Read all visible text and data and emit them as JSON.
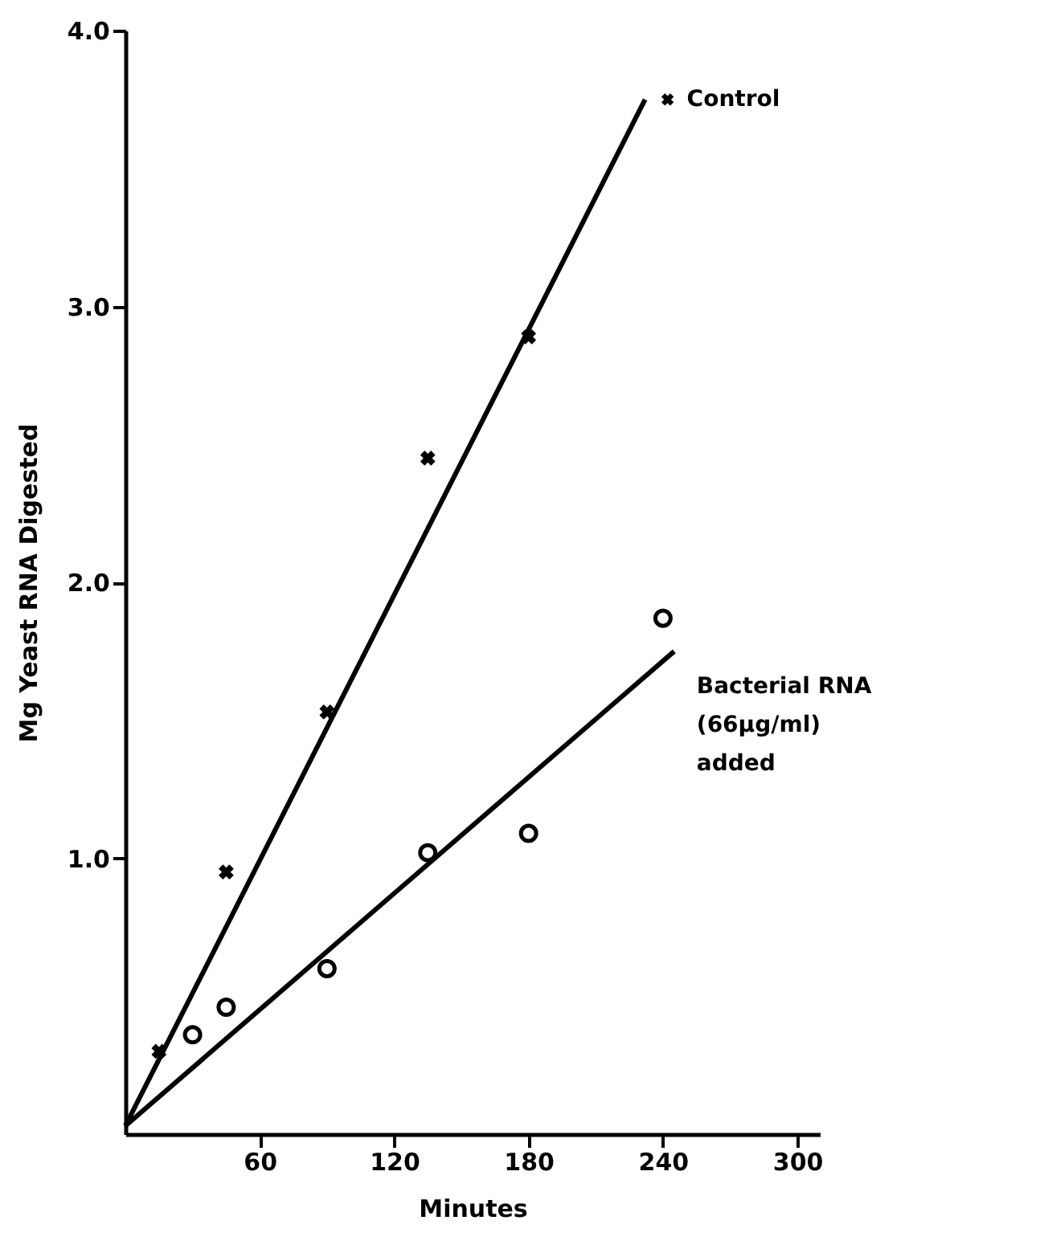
{
  "chart_data": {
    "type": "scatter",
    "xlabel": "Minutes",
    "ylabel": "Mg Yeast RNA Digested",
    "xlim": [
      0,
      310
    ],
    "ylim": [
      0,
      4.0
    ],
    "xticks": [
      60,
      120,
      180,
      240,
      300
    ],
    "yticks": [
      {
        "value": 1,
        "label": "1.0"
      },
      {
        "value": 2,
        "label": "2.0"
      },
      {
        "value": 3,
        "label": "3.0"
      },
      {
        "value": 4,
        "label": "4.0"
      }
    ],
    "grid": false,
    "legend": "top right",
    "series": [
      {
        "name": "Control",
        "marker": "cross",
        "color": "#000000",
        "x": [
          15,
          45,
          90,
          135,
          180
        ],
        "values": [
          0.3,
          0.95,
          1.53,
          2.45,
          2.89
        ]
      },
      {
        "type": "line",
        "marker": "none",
        "line_style": "solid",
        "color": "#000000",
        "x": [
          0,
          232
        ],
        "values": [
          0.03,
          3.75
        ]
      },
      {
        "name": "Bacterial RNA (66µg/ml) added",
        "marker": "circle",
        "color": "#000000",
        "x": [
          30,
          45,
          90,
          135,
          180,
          240
        ],
        "values": [
          0.36,
          0.46,
          0.6,
          1.02,
          1.09,
          1.87
        ]
      },
      {
        "type": "line",
        "marker": "none",
        "line_style": "solid",
        "color": "#000000",
        "x": [
          0,
          245
        ],
        "values": [
          0.03,
          1.75
        ]
      }
    ]
  }
}
